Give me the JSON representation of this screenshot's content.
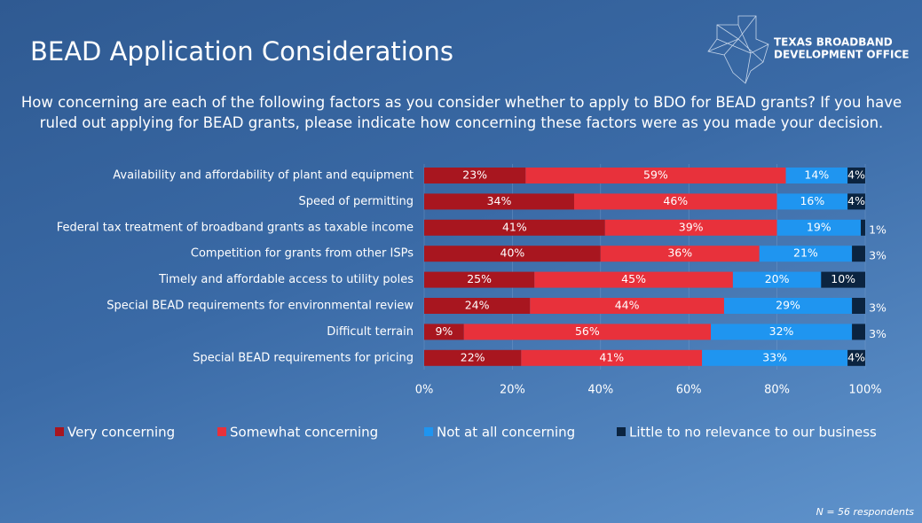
{
  "chart_data": {
    "type": "stacked_bar_horizontal",
    "title": "BEAD Application Considerations",
    "subtitle": "How concerning are each of the following factors as you consider whether to apply to BDO for BEAD grants? If you have ruled out applying for BEAD grants, please indicate how concerning these factors were as you made your decision.",
    "logo": [
      "TEXAS BROADBAND",
      "DEVELOPMENT OFFICE"
    ],
    "footnote": "N = 56 respondents",
    "categories": [
      "Availability and affordability of plant and equipment",
      "Speed of permitting",
      "Federal tax treatment of broadband grants as taxable income",
      "Competition for grants from other ISPs",
      "Timely and affordable access to utility poles",
      "Special BEAD requirements for environmental review",
      "Difficult terrain",
      "Special BEAD requirements for pricing"
    ],
    "series": [
      {
        "name": "Very concerning",
        "color": "#a8161f",
        "values": [
          23,
          34,
          41,
          40,
          25,
          24,
          9,
          22
        ],
        "value_labels": [
          "23%",
          "34%",
          "41%",
          "40%",
          "25%",
          "24%",
          "9%",
          "22%"
        ]
      },
      {
        "name": "Somewhat concerning",
        "color": "#e8313b",
        "values": [
          59,
          46,
          39,
          36,
          45,
          44,
          56,
          41
        ],
        "value_labels": [
          "59%",
          "46%",
          "39%",
          "36%",
          "45%",
          "44%",
          "56%",
          "41%"
        ]
      },
      {
        "name": "Not at all concerning",
        "color": "#1f95f0",
        "values": [
          14,
          16,
          19,
          21,
          20,
          29,
          32,
          33
        ],
        "value_labels": [
          "14%",
          "16%",
          "19%",
          "21%",
          "20%",
          "29%",
          "32%",
          "33%"
        ]
      },
      {
        "name": "Little to no relevance to our business",
        "color": "#0b2440",
        "values": [
          4,
          4,
          1,
          3,
          10,
          3,
          3,
          4
        ],
        "value_labels": [
          "4%",
          "4%",
          "1%",
          "3%",
          "10%",
          "3%",
          "3%",
          "4%"
        ]
      }
    ],
    "xlim": [
      0,
      100
    ],
    "xticks": [
      {
        "value": 0,
        "label": "0%"
      },
      {
        "value": 20,
        "label": "20%"
      },
      {
        "value": 40,
        "label": "40%"
      },
      {
        "value": 60,
        "label": "60%"
      },
      {
        "value": 80,
        "label": "80%"
      },
      {
        "value": 100,
        "label": "100%"
      }
    ],
    "grid": true
  }
}
